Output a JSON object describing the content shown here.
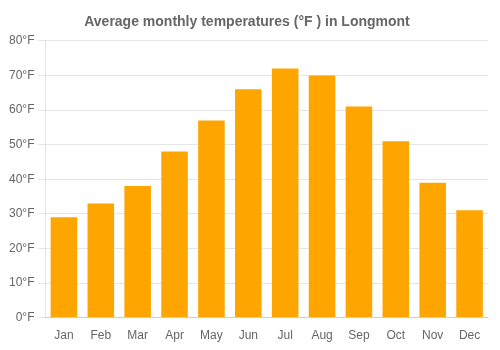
{
  "chart_data": {
    "type": "bar",
    "title": "Average monthly temperatures (°F ) in Longmont",
    "categories": [
      "Jan",
      "Feb",
      "Mar",
      "Apr",
      "May",
      "Jun",
      "Jul",
      "Aug",
      "Sep",
      "Oct",
      "Nov",
      "Dec"
    ],
    "values": [
      29,
      33,
      38,
      48,
      57,
      66,
      72,
      70,
      61,
      51,
      39,
      31
    ],
    "color": "#FFA500",
    "ylim": [
      0,
      80
    ],
    "yticks": [
      {
        "value": 0,
        "label": "0°F"
      },
      {
        "value": 10,
        "label": "10°F"
      },
      {
        "value": 20,
        "label": "20°F"
      },
      {
        "value": 30,
        "label": "30°F"
      },
      {
        "value": 40,
        "label": "40°F"
      },
      {
        "value": 50,
        "label": "50°F"
      },
      {
        "value": 60,
        "label": "60°F"
      },
      {
        "value": 70,
        "label": "70°F"
      },
      {
        "value": 80,
        "label": "80°F"
      }
    ],
    "grid": true
  }
}
